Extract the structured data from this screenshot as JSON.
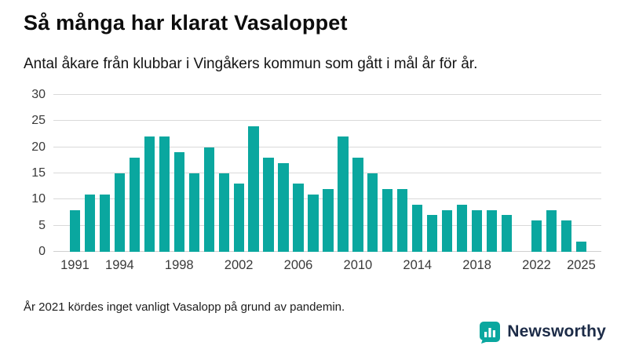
{
  "header": {
    "title": "Så många har klarat Vasaloppet",
    "subtitle": "Antal åkare från klubbar i Vingåkers kommun som gått i mål år för år."
  },
  "chart_data": {
    "type": "bar",
    "x": [
      1991,
      1992,
      1993,
      1994,
      1995,
      1996,
      1997,
      1998,
      1999,
      2000,
      2001,
      2002,
      2003,
      2004,
      2005,
      2006,
      2007,
      2008,
      2009,
      2010,
      2011,
      2012,
      2013,
      2014,
      2015,
      2016,
      2017,
      2018,
      2019,
      2020,
      2021,
      2022,
      2023,
      2024,
      2025
    ],
    "values": [
      8,
      11,
      11,
      15,
      18,
      22,
      22,
      19,
      15,
      20,
      15,
      13,
      24,
      18,
      17,
      13,
      11,
      12,
      22,
      18,
      15,
      12,
      12,
      9,
      7,
      8,
      9,
      8,
      8,
      7,
      null,
      6,
      8,
      6,
      2
    ],
    "labeled_ticks": [
      1991,
      1994,
      1998,
      2002,
      2006,
      2010,
      2014,
      2018,
      2022,
      2025
    ],
    "yticks": [
      0,
      5,
      10,
      15,
      20,
      25,
      30
    ],
    "ylim": [
      0,
      30
    ],
    "bar_color": "#0aa79f",
    "grid": true,
    "title": "Så många har klarat Vasaloppet",
    "xlabel": "",
    "ylabel": "",
    "annotation": "År 2021 kördes inget vanligt Vasalopp på grund av pandemin (inget staplat värde för 2021)."
  },
  "footer": {
    "note": "År 2021 kördes inget vanligt Vasalopp på grund av pandemin.",
    "brand": "Newsworthy"
  },
  "colors": {
    "accent_teal": "#0aa79f",
    "brand_navy": "#1c2b47",
    "gridline": "#d9d9d9"
  }
}
